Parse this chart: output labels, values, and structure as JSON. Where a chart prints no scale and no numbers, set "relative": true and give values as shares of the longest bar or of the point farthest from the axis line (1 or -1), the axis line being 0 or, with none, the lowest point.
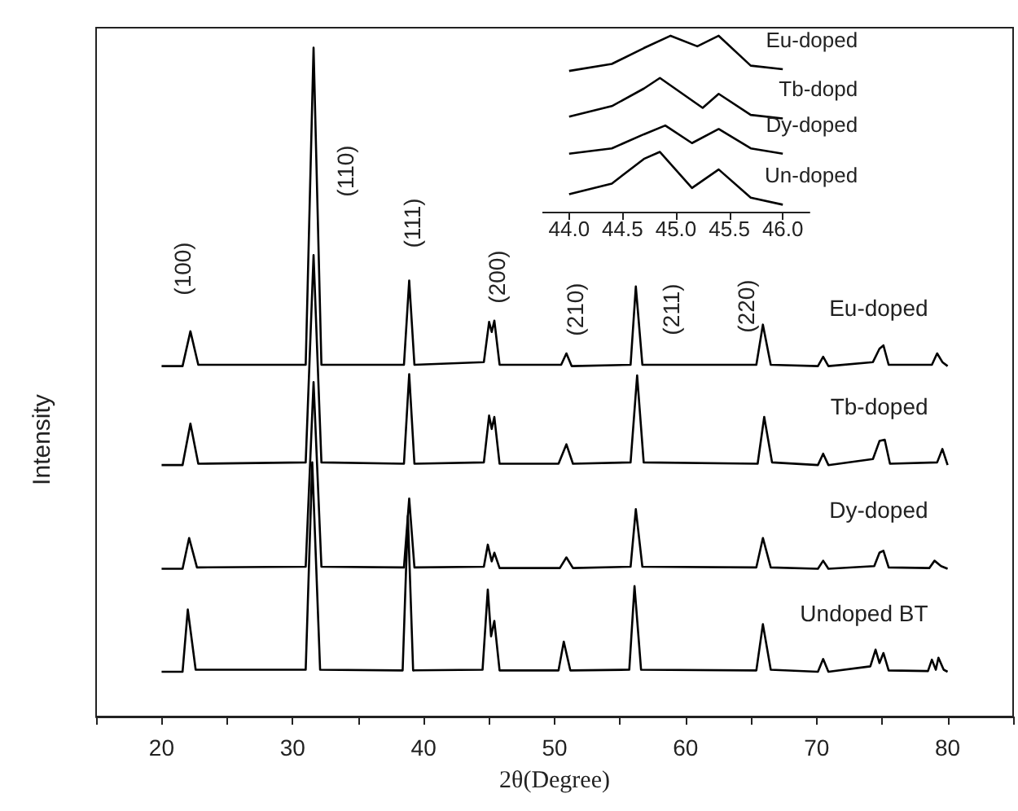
{
  "chart_data": [
    {
      "type": "line",
      "xlabel": "2θ(Degree)",
      "ylabel": "Intensity",
      "relative": true,
      "xlim": [
        15,
        85
      ],
      "xticks": [
        {
          "value": 15,
          "label": null
        },
        20,
        {
          "value": 25,
          "label": null
        },
        30,
        {
          "value": 35,
          "label": null
        },
        40,
        {
          "value": 45,
          "label": null
        },
        50,
        {
          "value": 55,
          "label": null
        },
        60,
        {
          "value": 65,
          "label": null
        },
        70,
        {
          "value": 75,
          "label": null
        },
        80,
        {
          "value": 85,
          "label": null
        }
      ],
      "tick_labels": "x",
      "marker": "none",
      "line_style": "solid",
      "grid": false,
      "annotations": [
        "(100)",
        "(110)",
        "(111)",
        "(200)",
        "(210)",
        "(211)",
        "(220)"
      ],
      "series": [
        {
          "name": "Eu-doped",
          "color": "#000000",
          "x": [
            20,
            21.6,
            22.2,
            22.8,
            31,
            31.6,
            32.2,
            38.5,
            38.9,
            39.3,
            44.6,
            45.0,
            45.2,
            45.4,
            45.8,
            50.5,
            50.9,
            51.3,
            55.8,
            56.2,
            56.7,
            65.4,
            65.9,
            66.5,
            70.1,
            70.5,
            70.9,
            74.3,
            74.8,
            75.1,
            75.5,
            78.8,
            79.2,
            79.6,
            80
          ],
          "values": [
            0.524,
            0.524,
            0.576,
            0.526,
            0.526,
            1,
            0.526,
            0.526,
            0.652,
            0.526,
            0.53,
            0.59,
            0.575,
            0.592,
            0.526,
            0.526,
            0.543,
            0.524,
            0.526,
            0.643,
            0.526,
            0.526,
            0.586,
            0.526,
            0.524,
            0.538,
            0.524,
            0.53,
            0.55,
            0.555,
            0.526,
            0.526,
            0.543,
            0.53,
            0.524
          ]
        },
        {
          "name": "Tb-doped",
          "color": "#000000",
          "x": [
            20,
            21.6,
            22.2,
            22.8,
            31,
            31.6,
            32.2,
            38.5,
            38.9,
            39.3,
            44.6,
            45.0,
            45.2,
            45.4,
            45.8,
            50.3,
            50.9,
            51.4,
            55.8,
            56.3,
            56.8,
            65.5,
            66.0,
            66.6,
            70.1,
            70.5,
            70.9,
            74.3,
            74.8,
            75.2,
            75.6,
            79.2,
            79.6,
            80
          ],
          "values": [
            0.376,
            0.376,
            0.438,
            0.378,
            0.38,
            0.69,
            0.38,
            0.378,
            0.512,
            0.378,
            0.38,
            0.45,
            0.43,
            0.448,
            0.378,
            0.378,
            0.407,
            0.378,
            0.38,
            0.51,
            0.38,
            0.378,
            0.448,
            0.38,
            0.376,
            0.393,
            0.376,
            0.385,
            0.412,
            0.414,
            0.378,
            0.38,
            0.4,
            0.376
          ]
        },
        {
          "name": "Dy-doped",
          "color": "#000000",
          "x": [
            20,
            21.6,
            22.1,
            22.7,
            31,
            31.6,
            32.2,
            38.5,
            38.9,
            39.3,
            44.6,
            44.9,
            45.2,
            45.4,
            45.8,
            50.4,
            50.9,
            51.4,
            55.8,
            56.2,
            56.7,
            65.4,
            65.9,
            66.5,
            70.1,
            70.5,
            70.9,
            74.4,
            74.8,
            75.1,
            75.5,
            78.6,
            79,
            79.5,
            80
          ],
          "values": [
            0.221,
            0.221,
            0.267,
            0.223,
            0.224,
            0.5,
            0.224,
            0.223,
            0.326,
            0.223,
            0.224,
            0.257,
            0.232,
            0.245,
            0.222,
            0.222,
            0.238,
            0.222,
            0.224,
            0.31,
            0.224,
            0.223,
            0.267,
            0.223,
            0.221,
            0.233,
            0.221,
            0.225,
            0.245,
            0.248,
            0.223,
            0.222,
            0.233,
            0.225,
            0.221
          ]
        },
        {
          "name": "Undoped BT",
          "color": "#000000",
          "x": [
            20,
            21.6,
            22.0,
            22.6,
            31,
            31.5,
            32.1,
            38.4,
            38.8,
            39.2,
            44.5,
            44.9,
            45.15,
            45.4,
            45.8,
            50.3,
            50.7,
            51.2,
            55.7,
            56.1,
            56.6,
            65.4,
            65.9,
            66.5,
            70.1,
            70.5,
            70.9,
            74.1,
            74.5,
            74.8,
            75.1,
            75.5,
            78.5,
            78.8,
            79.1,
            79.3,
            79.7,
            80
          ],
          "values": [
            0.067,
            0.067,
            0.16,
            0.07,
            0.07,
            0.38,
            0.07,
            0.069,
            0.3,
            0.069,
            0.07,
            0.19,
            0.12,
            0.143,
            0.069,
            0.069,
            0.112,
            0.069,
            0.07,
            0.195,
            0.07,
            0.069,
            0.138,
            0.07,
            0.067,
            0.086,
            0.067,
            0.075,
            0.1,
            0.08,
            0.095,
            0.069,
            0.068,
            0.085,
            0.07,
            0.088,
            0.07,
            0.067
          ]
        }
      ]
    },
    {
      "type": "line",
      "relative": true,
      "xlim": [
        43.75,
        46.25
      ],
      "xticks": [
        {
          "value": 44,
          "label": "44.0"
        },
        {
          "value": 44.5,
          "label": "44.5"
        },
        {
          "value": 45,
          "label": "45.0"
        },
        {
          "value": 45.5,
          "label": "45.5"
        },
        {
          "value": 46,
          "label": "46.0"
        }
      ],
      "tick_labels": "x",
      "marker": "none",
      "line_style": "solid",
      "grid": false,
      "series": [
        {
          "name": "Eu-doped",
          "color": "#000000",
          "x": [
            44.0,
            44.4,
            44.7,
            44.95,
            45.2,
            45.4,
            45.7,
            46.0
          ],
          "values": [
            0.8,
            0.84,
            0.93,
            1,
            0.94,
            1,
            0.83,
            0.81
          ]
        },
        {
          "name": "Tb-dopd",
          "color": "#000000",
          "x": [
            44.0,
            44.4,
            44.7,
            44.85,
            45.25,
            45.4,
            45.7,
            46.0
          ],
          "values": [
            0.54,
            0.6,
            0.7,
            0.76,
            0.59,
            0.67,
            0.55,
            0.53
          ]
        },
        {
          "name": "Dy-doped",
          "color": "#000000",
          "x": [
            44.0,
            44.4,
            44.7,
            44.9,
            45.15,
            45.4,
            45.7,
            46.0
          ],
          "values": [
            0.33,
            0.36,
            0.44,
            0.49,
            0.39,
            0.47,
            0.36,
            0.33
          ]
        },
        {
          "name": "Un-doped",
          "color": "#000000",
          "x": [
            44.0,
            44.4,
            44.7,
            44.85,
            45.15,
            45.4,
            45.7,
            46.0
          ],
          "values": [
            0.1,
            0.16,
            0.3,
            0.34,
            0.135,
            0.24,
            0.08,
            0.04
          ]
        }
      ]
    }
  ]
}
